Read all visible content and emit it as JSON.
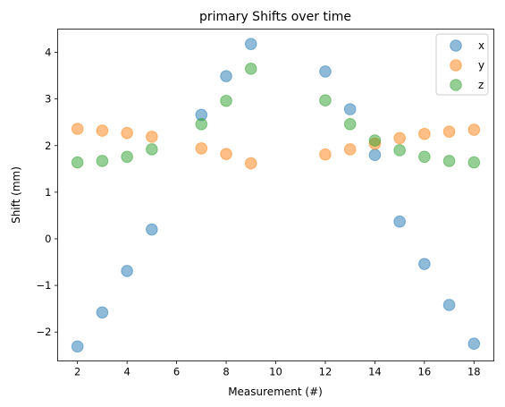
{
  "chart_data": {
    "type": "scatter",
    "title": "primary Shifts over time",
    "xlabel": "Measurement (#)",
    "ylabel": "Shift (mm)",
    "xlim": [
      1.2,
      18.8
    ],
    "ylim": [
      -2.62,
      4.5
    ],
    "xticks": [
      2,
      4,
      6,
      8,
      10,
      12,
      14,
      16,
      18
    ],
    "yticks": [
      -2,
      -1,
      0,
      1,
      2,
      3,
      4
    ],
    "ytick_labels": [
      "−2",
      "−1",
      "0",
      "1",
      "2",
      "3",
      "4"
    ],
    "grid": false,
    "legend_position": "top-right",
    "series": [
      {
        "name": "x",
        "color": "#1f77b4",
        "x": [
          2,
          3,
          4,
          5,
          7,
          8,
          9,
          12,
          13,
          14,
          15,
          16,
          17,
          18
        ],
        "y": [
          -2.31,
          -1.58,
          -0.69,
          0.2,
          2.66,
          3.49,
          4.18,
          3.59,
          2.78,
          1.8,
          0.37,
          -0.54,
          -1.42,
          -2.25
        ]
      },
      {
        "name": "y",
        "color": "#ff7f0e",
        "x": [
          2,
          3,
          4,
          5,
          7,
          8,
          9,
          12,
          13,
          14,
          15,
          16,
          17,
          18
        ],
        "y": [
          2.36,
          2.32,
          2.27,
          2.19,
          1.94,
          1.82,
          1.62,
          1.81,
          1.92,
          2.04,
          2.16,
          2.25,
          2.3,
          2.34
        ]
      },
      {
        "name": "z",
        "color": "#2ca02c",
        "x": [
          2,
          3,
          4,
          5,
          7,
          8,
          9,
          12,
          13,
          14,
          15,
          16,
          17,
          18
        ],
        "y": [
          1.64,
          1.67,
          1.76,
          1.92,
          2.46,
          2.96,
          3.65,
          2.97,
          2.46,
          2.11,
          1.9,
          1.76,
          1.67,
          1.64
        ]
      }
    ]
  }
}
